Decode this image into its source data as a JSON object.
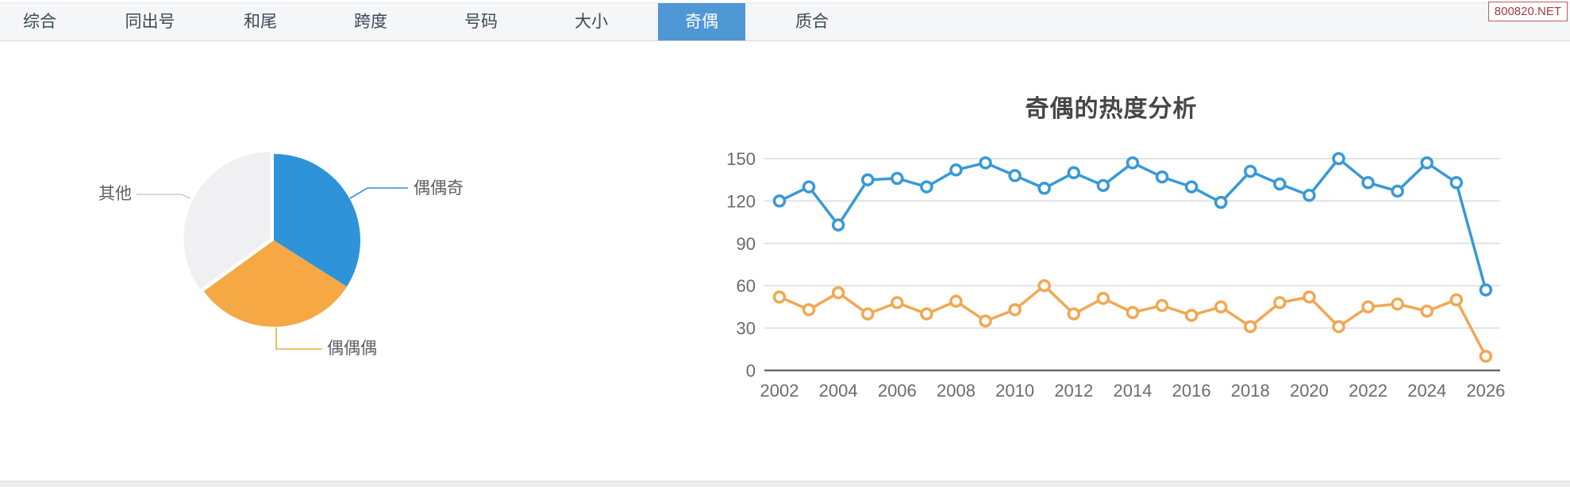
{
  "watermark": {
    "text": "800820.NET"
  },
  "tabs": {
    "items": [
      "综合",
      "同出号",
      "和尾",
      "跨度",
      "号码",
      "大小",
      "奇偶",
      "质合"
    ],
    "selected": "奇偶",
    "selected_index": 6,
    "accent_color": "#4F97D5"
  },
  "chart_data": [
    {
      "type": "pie",
      "slices": [
        {
          "label": "偶偶奇",
          "value": 34,
          "color": "#2E93D8"
        },
        {
          "label": "偶偶偶",
          "value": 31,
          "color": "#F5A843"
        },
        {
          "label": "其他",
          "value": 35,
          "color": "#F0F0F2",
          "connector_color": "#CCCCCC"
        }
      ],
      "legend": "none",
      "labels_style": "outside-with-connector"
    },
    {
      "type": "line",
      "title": "奇偶的热度分析",
      "x": [
        2002,
        2003,
        2004,
        2005,
        2006,
        2007,
        2008,
        2009,
        2010,
        2011,
        2012,
        2013,
        2014,
        2015,
        2016,
        2017,
        2018,
        2019,
        2020,
        2021,
        2022,
        2023,
        2024,
        2025,
        2026
      ],
      "xticks": [
        2002,
        2004,
        2006,
        2008,
        2010,
        2012,
        2014,
        2016,
        2018,
        2020,
        2022,
        2024,
        2026
      ],
      "yticks": [
        0,
        30,
        60,
        90,
        120,
        150
      ],
      "ylim": [
        0,
        150
      ],
      "grid": true,
      "legend": "none",
      "series": [
        {
          "name": "series-blue",
          "color": "#3899D6",
          "values": [
            120,
            130,
            103,
            135,
            136,
            130,
            142,
            147,
            138,
            129,
            140,
            131,
            147,
            137,
            130,
            119,
            141,
            132,
            124,
            150,
            133,
            127,
            147,
            133,
            57
          ]
        },
        {
          "name": "series-orange",
          "color": "#F1A851",
          "values": [
            52,
            43,
            55,
            40,
            48,
            40,
            49,
            35,
            43,
            60,
            40,
            51,
            41,
            46,
            39,
            45,
            31,
            48,
            52,
            31,
            45,
            47,
            42,
            50,
            10
          ]
        }
      ]
    }
  ]
}
